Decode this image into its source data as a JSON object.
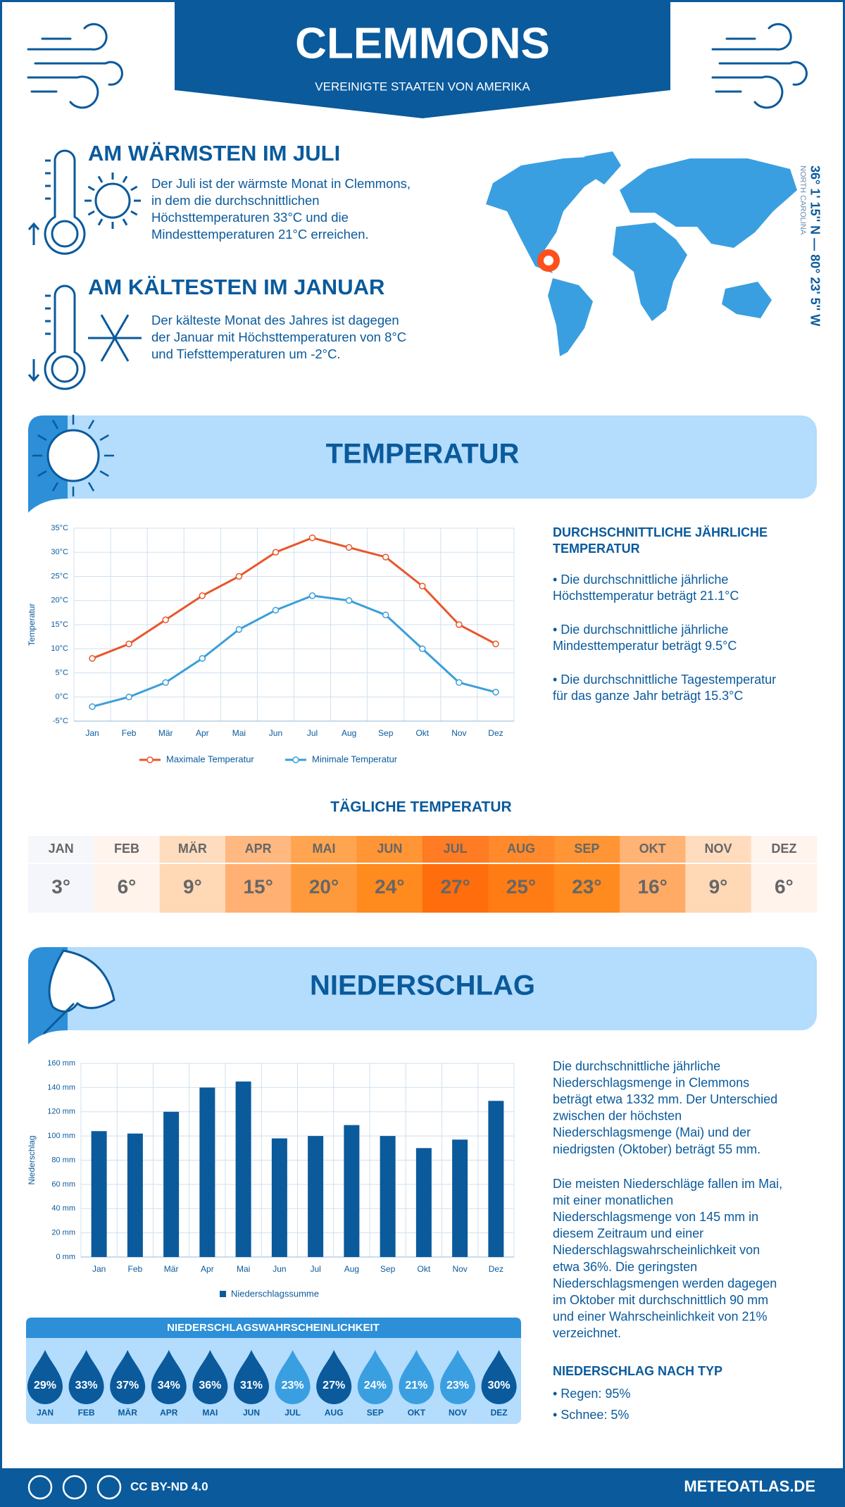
{
  "header": {
    "title": "CLEMMONS",
    "subtitle": "VEREINIGTE STAATEN VON AMERIKA"
  },
  "warmest": {
    "heading": "AM WÄRMSTEN IM JULI",
    "lines": [
      "Der Juli ist der wärmste Monat in Clemmons,",
      "in dem die durchschnittlichen",
      "Höchsttemperaturen 33°C und die",
      "Mindesttemperaturen 21°C erreichen."
    ]
  },
  "coldest": {
    "heading": "AM KÄLTESTEN IM JANUAR",
    "lines": [
      "Der kälteste Monat des Jahres ist dagegen",
      "der Januar mit Höchsttemperaturen von 8°C",
      "und Tiefsttemperaturen um -2°C."
    ]
  },
  "location": {
    "coordinates": "36° 1' 15'' N — 80° 23' 5'' W",
    "region": "NORTH CAROLINA"
  },
  "temperature_section": {
    "title": "TEMPERATUR"
  },
  "temperature_summary": {
    "heading": [
      "DURCHSCHNITTLICHE JÄHRLICHE",
      "TEMPERATUR"
    ],
    "bullets": [
      [
        "• Die durchschnittliche jährliche",
        "Höchsttemperatur beträgt 21.1°C"
      ],
      [
        "• Die durchschnittliche jährliche",
        "Mindesttemperatur beträgt 9.5°C"
      ],
      [
        "• Die durchschnittliche Tagestemperatur",
        "für das ganze Jahr beträgt 15.3°C"
      ]
    ]
  },
  "chart_data": [
    {
      "type": "line",
      "y_label": "Temperatur",
      "categories": [
        "Jan",
        "Feb",
        "Mär",
        "Apr",
        "Mai",
        "Jun",
        "Jul",
        "Aug",
        "Sep",
        "Okt",
        "Nov",
        "Dez"
      ],
      "series": [
        {
          "name": "Maximale Temperatur",
          "color": "#e8562a",
          "values": [
            8,
            11,
            16,
            21,
            25,
            30,
            33,
            31,
            29,
            23,
            15,
            11
          ]
        },
        {
          "name": "Minimale Temperatur",
          "color": "#3a9fd9",
          "values": [
            -2,
            0,
            3,
            8,
            14,
            18,
            21,
            20,
            17,
            10,
            3,
            1
          ]
        }
      ],
      "ylim": [
        -5,
        35
      ],
      "yticks": [
        {
          "value": -5,
          "label": "-5°C"
        },
        {
          "value": 0,
          "label": "0°C"
        },
        {
          "value": 5,
          "label": "5°C"
        },
        {
          "value": 10,
          "label": "10°C"
        },
        {
          "value": 15,
          "label": "15°C"
        },
        {
          "value": 20,
          "label": "20°C"
        },
        {
          "value": 25,
          "label": "25°C"
        },
        {
          "value": 30,
          "label": "30°C"
        },
        {
          "value": 35,
          "label": "35°C"
        }
      ],
      "grid": true,
      "legend": "bottom"
    },
    {
      "type": "bar",
      "y_label": "Niederschlag",
      "categories": [
        "Jan",
        "Feb",
        "Mär",
        "Apr",
        "Mai",
        "Jun",
        "Jul",
        "Aug",
        "Sep",
        "Okt",
        "Nov",
        "Dez"
      ],
      "series": [
        {
          "name": "Niederschlagssumme",
          "color": "#0a5a9c",
          "values": [
            104,
            102,
            120,
            140,
            145,
            98,
            100,
            109,
            100,
            90,
            97,
            129
          ]
        }
      ],
      "ylim": [
        0,
        160
      ],
      "yticks": [
        {
          "value": 0,
          "label": "0 mm"
        },
        {
          "value": 20,
          "label": "20 mm"
        },
        {
          "value": 40,
          "label": "40 mm"
        },
        {
          "value": 60,
          "label": "60 mm"
        },
        {
          "value": 80,
          "label": "80 mm"
        },
        {
          "value": 100,
          "label": "100 mm"
        },
        {
          "value": 120,
          "label": "120 mm"
        },
        {
          "value": 140,
          "label": "140 mm"
        },
        {
          "value": 160,
          "label": "160 mm"
        }
      ],
      "grid": true,
      "legend": "bottom"
    }
  ],
  "daily_temperature": {
    "title": "TÄGLICHE TEMPERATUR",
    "months": [
      "JAN",
      "FEB",
      "MÄR",
      "APR",
      "MAI",
      "JUN",
      "JUL",
      "AUG",
      "SEP",
      "OKT",
      "NOV",
      "DEZ"
    ],
    "values": [
      3,
      6,
      9,
      15,
      20,
      24,
      27,
      25,
      23,
      16,
      9,
      6
    ],
    "value_labels": [
      "3°",
      "6°",
      "9°",
      "15°",
      "20°",
      "24°",
      "27°",
      "25°",
      "23°",
      "16°",
      "9°",
      "6°"
    ],
    "colors": [
      "#f4f6fb",
      "#fff3ec",
      "#ffd8b6",
      "#ffb072",
      "#ff9a3c",
      "#ff8a1e",
      "#ff6d0c",
      "#ff7c14",
      "#ff8a1e",
      "#ffab66",
      "#ffd8b6",
      "#fff3ec"
    ]
  },
  "precipitation_section": {
    "title": "NIEDERSCHLAG"
  },
  "precipitation_text": [
    [
      "Die durchschnittliche jährliche",
      "Niederschlagsmenge in Clemmons",
      "beträgt etwa 1332 mm. Der Unterschied",
      "zwischen der höchsten",
      "Niederschlagsmenge (Mai) und der",
      "niedrigsten (Oktober) beträgt 55 mm."
    ],
    [
      "Die meisten Niederschläge fallen im Mai,",
      "mit einer monatlichen",
      "Niederschlagsmenge von 145 mm in",
      "diesem Zeitraum und einer",
      "Niederschlagswahrscheinlichkeit von",
      "etwa 36%. Die geringsten",
      "Niederschlagsmengen werden dagegen",
      "im Oktober mit durchschnittlich 90 mm",
      "und einer Wahrscheinlichkeit von 21%",
      "verzeichnet."
    ]
  ],
  "precipitation_probability": {
    "title": "NIEDERSCHLAGSWAHRSCHEINLICHKEIT",
    "months": [
      "JAN",
      "FEB",
      "MÄR",
      "APR",
      "MAI",
      "JUN",
      "JUL",
      "AUG",
      "SEP",
      "OKT",
      "NOV",
      "DEZ"
    ],
    "values": [
      29,
      33,
      37,
      34,
      36,
      31,
      23,
      27,
      24,
      21,
      23,
      30
    ],
    "value_labels": [
      "29%",
      "33%",
      "37%",
      "34%",
      "36%",
      "31%",
      "23%",
      "27%",
      "24%",
      "21%",
      "23%",
      "30%"
    ],
    "colors": [
      "#0a5a9c",
      "#0a5a9c",
      "#0a5a9c",
      "#0a5a9c",
      "#0a5a9c",
      "#0a5a9c",
      "#3a9fe0",
      "#0a5a9c",
      "#3a9fe0",
      "#3a9fe0",
      "#3a9fe0",
      "#0a5a9c"
    ]
  },
  "precipitation_type": {
    "heading": "NIEDERSCHLAG NACH TYP",
    "items": [
      "• Regen: 95%",
      "• Schnee: 5%"
    ]
  },
  "footer": {
    "license": "CC BY-ND 4.0",
    "site": "METEOATLAS.DE"
  }
}
